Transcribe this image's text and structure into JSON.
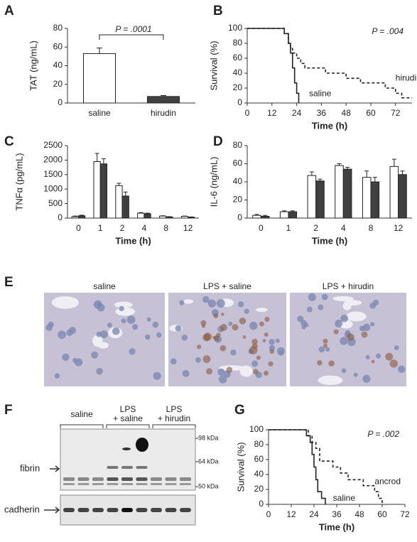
{
  "chart_data": [
    {
      "type": "bar",
      "label": "A",
      "ylabel": "TAT (ng/mL)",
      "categories": [
        "saline",
        "hirudin"
      ],
      "values": [
        53,
        7
      ],
      "errors": [
        6,
        1
      ],
      "colors": [
        "#ffffff",
        "#404040"
      ],
      "ylim": [
        0,
        80
      ],
      "yticks": [
        0,
        20,
        40,
        60,
        80
      ],
      "annotation": "P = .0001"
    },
    {
      "type": "line",
      "label": "B",
      "xlabel": "Time (h)",
      "ylabel": "Survival (%)",
      "xlim": [
        0,
        80
      ],
      "xticks": [
        0,
        12,
        24,
        36,
        48,
        60,
        72
      ],
      "ylim": [
        0,
        100
      ],
      "yticks": [
        0,
        20,
        40,
        60,
        80,
        100
      ],
      "annotation": "P = .004",
      "series": [
        {
          "name": "saline",
          "color": "#222222",
          "linestyle": "solid",
          "x": [
            0,
            18,
            18,
            20,
            20,
            21,
            21,
            22,
            22,
            23,
            23,
            24,
            24,
            25,
            25
          ],
          "values": [
            100,
            100,
            93,
            93,
            80,
            80,
            67,
            67,
            47,
            47,
            27,
            27,
            13,
            13,
            0
          ]
        },
        {
          "name": "hirudin",
          "color": "#222222",
          "linestyle": "dashed",
          "x": [
            0,
            18,
            18,
            20,
            20,
            21,
            21,
            22,
            22,
            24,
            24,
            26,
            26,
            28,
            28,
            38,
            38,
            48,
            48,
            55,
            55,
            67,
            67,
            72,
            72,
            75,
            75,
            80
          ],
          "values": [
            100,
            100,
            93,
            93,
            80,
            80,
            73,
            73,
            67,
            67,
            60,
            60,
            53,
            53,
            47,
            47,
            40,
            40,
            33,
            33,
            27,
            27,
            20,
            20,
            13,
            13,
            7,
            7
          ]
        }
      ]
    },
    {
      "type": "bar",
      "label": "C",
      "xlabel": "Time (h)",
      "ylabel": "TNFα (pg/mL)",
      "categories": [
        "0",
        "1",
        "2",
        "4",
        "8",
        "12"
      ],
      "ylim": [
        0,
        2500
      ],
      "yticks": [
        0,
        500,
        1000,
        1500,
        2000,
        2500
      ],
      "series": [
        {
          "color": "#ffffff",
          "values": [
            50,
            1950,
            1120,
            170,
            70,
            60
          ],
          "errors": [
            20,
            280,
            80,
            20,
            10,
            10
          ]
        },
        {
          "color": "#404040",
          "values": [
            80,
            1870,
            760,
            150,
            40,
            30
          ],
          "errors": [
            20,
            180,
            140,
            20,
            10,
            10
          ]
        }
      ]
    },
    {
      "type": "bar",
      "label": "D",
      "xlabel": "Time (h)",
      "ylabel": "IL-6 (ng/mL)",
      "categories": [
        "0",
        "1",
        "2",
        "4",
        "8",
        "12"
      ],
      "ylim": [
        0,
        80
      ],
      "yticks": [
        0,
        20,
        40,
        60,
        80
      ],
      "series": [
        {
          "color": "#ffffff",
          "values": [
            3,
            7,
            47,
            58,
            45,
            57
          ],
          "errors": [
            1,
            1,
            4,
            2,
            7,
            8
          ]
        },
        {
          "color": "#404040",
          "values": [
            2,
            7,
            41,
            54,
            40,
            48
          ],
          "errors": [
            1,
            1,
            2,
            2,
            5,
            4
          ]
        }
      ]
    },
    {
      "type": "line",
      "label": "G",
      "xlabel": "Time (h)",
      "ylabel": "Survival (%)",
      "xlim": [
        0,
        72
      ],
      "xticks": [
        0,
        12,
        24,
        36,
        48,
        60,
        72
      ],
      "ylim": [
        0,
        100
      ],
      "yticks": [
        0,
        20,
        40,
        60,
        80,
        100
      ],
      "annotation": "P = .002",
      "series": [
        {
          "name": "saline",
          "color": "#222222",
          "linestyle": "solid",
          "x": [
            0,
            20,
            20,
            22,
            22,
            23,
            23,
            24,
            24,
            25,
            25,
            26,
            26,
            28,
            28,
            30,
            30
          ],
          "values": [
            100,
            100,
            92,
            92,
            83,
            83,
            67,
            67,
            50,
            50,
            33,
            33,
            17,
            17,
            8,
            8,
            0
          ]
        },
        {
          "name": "ancrod",
          "color": "#222222",
          "linestyle": "dashed",
          "x": [
            0,
            21,
            21,
            23,
            23,
            25,
            25,
            27,
            27,
            34,
            34,
            38,
            38,
            42,
            42,
            50,
            50,
            56,
            56,
            58,
            58,
            60,
            60
          ],
          "values": [
            100,
            100,
            92,
            92,
            83,
            83,
            75,
            75,
            58,
            58,
            50,
            50,
            42,
            42,
            33,
            33,
            25,
            25,
            17,
            17,
            8,
            8,
            0
          ]
        }
      ]
    }
  ],
  "panel_e": {
    "label": "E",
    "images": [
      "saline",
      "LPS + saline",
      "LPS + hirudin"
    ]
  },
  "panel_f": {
    "label": "F",
    "groups": [
      [
        "saline"
      ],
      [
        "LPS",
        "+ saline"
      ],
      [
        "LPS",
        "+ hirudin"
      ]
    ],
    "markers": [
      "98 kDa",
      "64 kDa",
      "50 kDa"
    ],
    "rows": [
      "fibrin",
      "cadherin"
    ]
  }
}
